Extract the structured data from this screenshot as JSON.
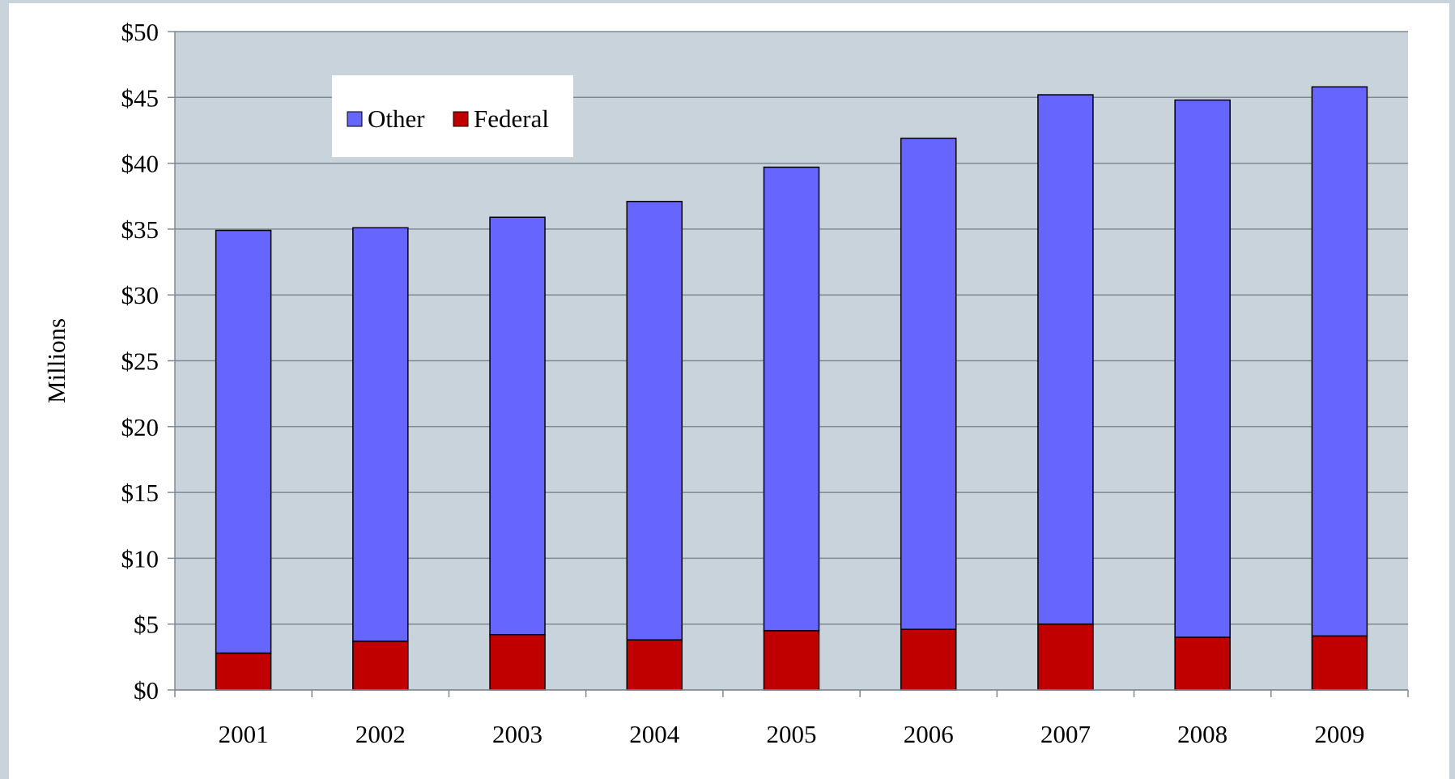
{
  "chart_data": {
    "type": "bar",
    "stacked": true,
    "categories": [
      "2001",
      "2002",
      "2003",
      "2004",
      "2005",
      "2006",
      "2007",
      "2008",
      "2009"
    ],
    "series": [
      {
        "name": "Federal",
        "color": "#c00000",
        "values": [
          2.8,
          3.7,
          4.2,
          3.8,
          4.5,
          4.6,
          5.0,
          4.0,
          4.1
        ]
      },
      {
        "name": "Other",
        "color": "#6666ff",
        "values": [
          32.1,
          31.4,
          31.7,
          33.3,
          35.2,
          37.3,
          40.2,
          40.8,
          41.7
        ]
      }
    ],
    "legend_order": [
      "Other",
      "Federal"
    ],
    "legend_position": "top-left",
    "ylabel": "Millions",
    "xlabel": "",
    "title": "",
    "ylim": [
      0,
      50
    ],
    "ytick_labels": [
      "$0",
      "$5",
      "$10",
      "$15",
      "$20",
      "$25",
      "$30",
      "$35",
      "$40",
      "$45",
      "$50"
    ],
    "grid": true,
    "plot_background": "#c8d3dc"
  }
}
